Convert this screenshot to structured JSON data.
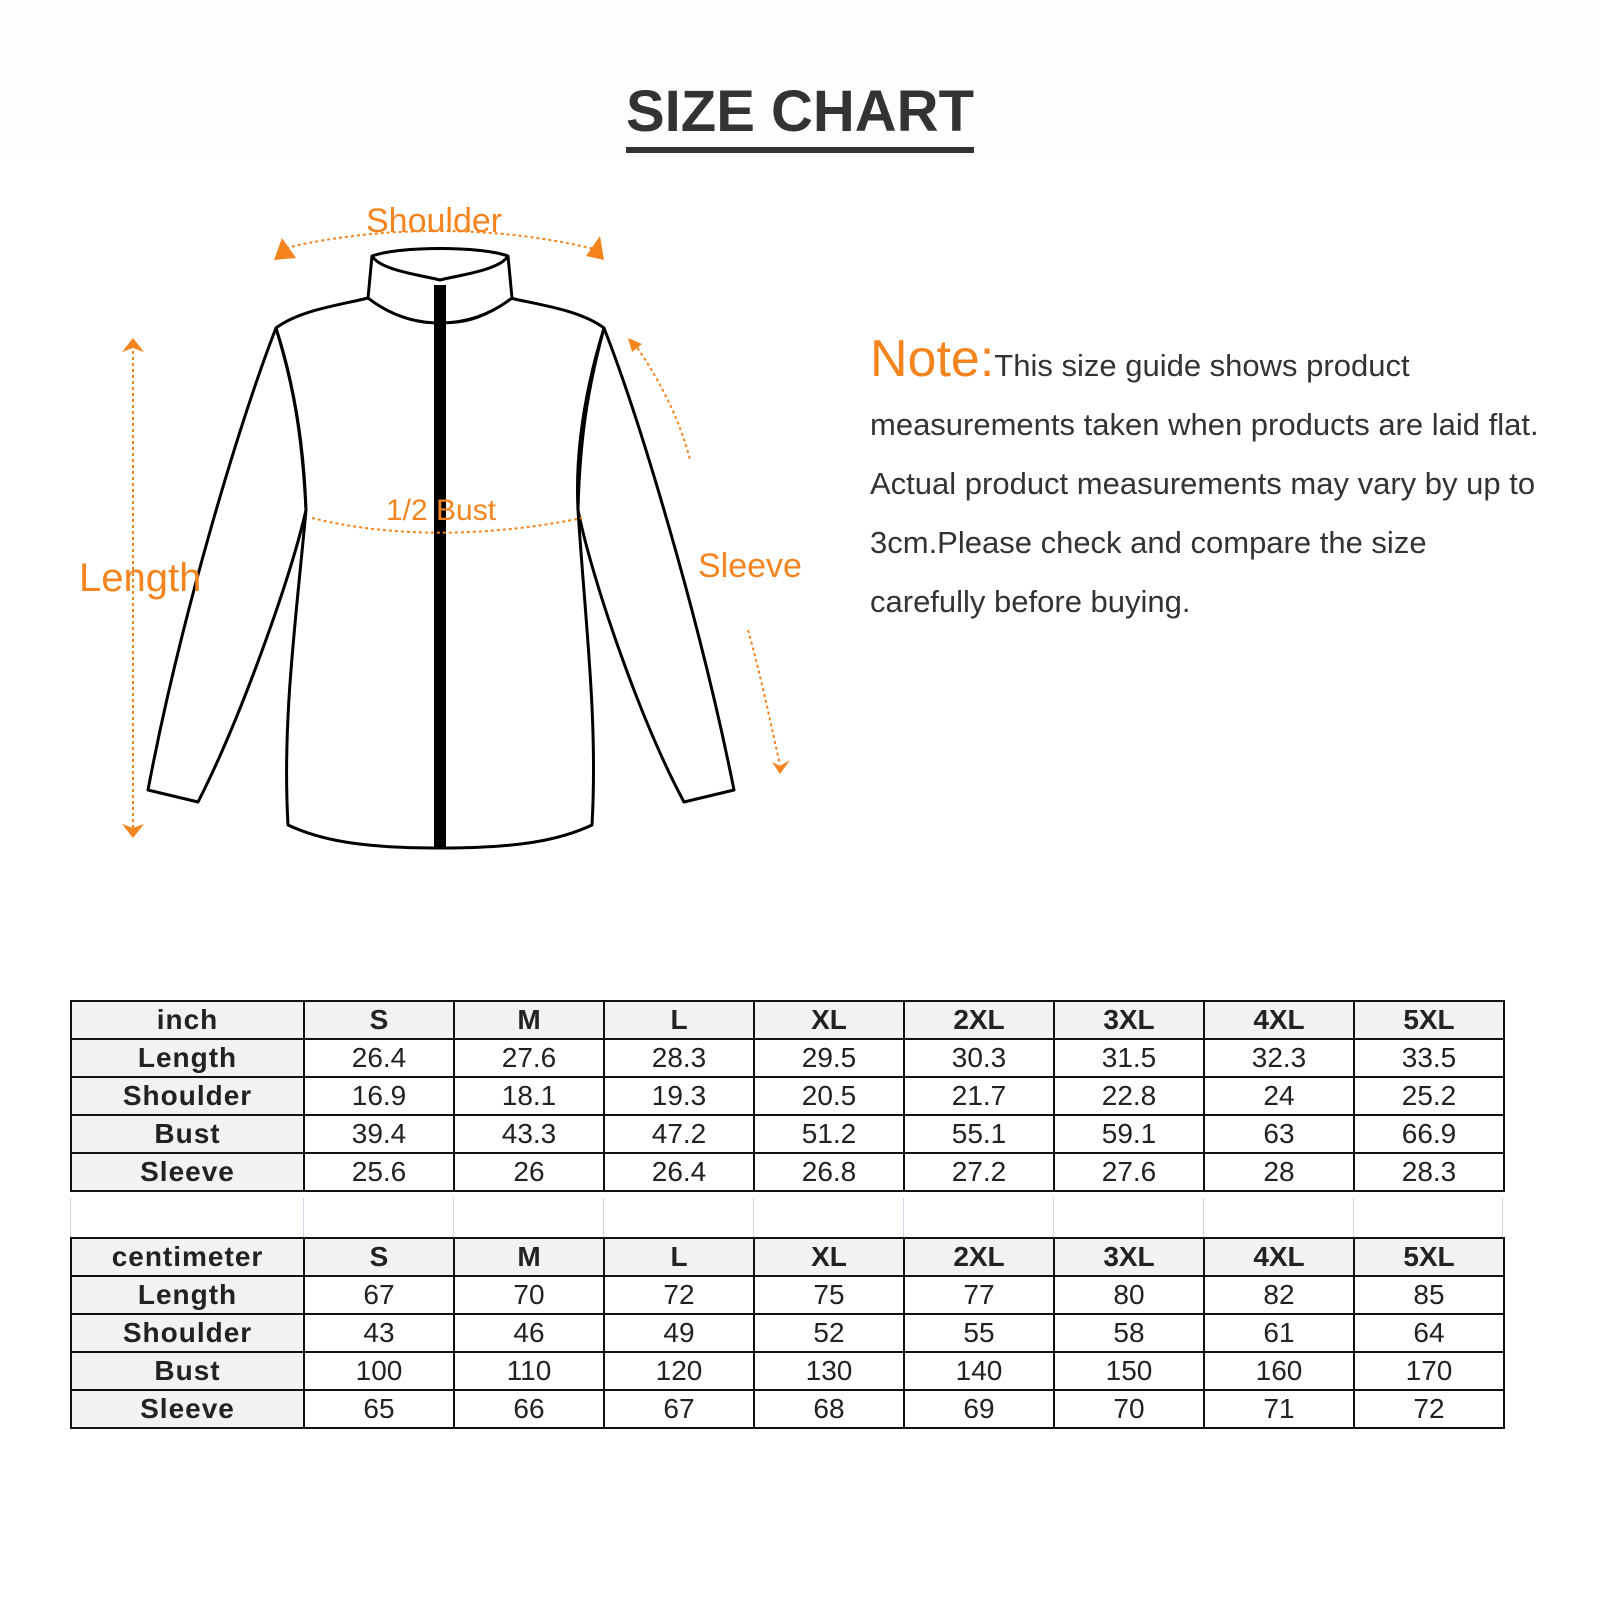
{
  "title": "SIZE CHART",
  "diagram_labels": {
    "shoulder": "Shoulder",
    "length": "Length",
    "bust": "1/2 Bust",
    "sleeve": "Sleeve"
  },
  "note": {
    "heading": "Note:",
    "text": "This size guide shows product measurements taken when products are laid flat. Actual product measurements may vary by up to 3cm.Please check and compare the size carefully before buying."
  },
  "colors": {
    "accent": "#f5841f",
    "text": "#333333",
    "header_cell": "#f2f2f2"
  },
  "tables": [
    {
      "unit": "inch",
      "sizes": [
        "S",
        "M",
        "L",
        "XL",
        "2XL",
        "3XL",
        "4XL",
        "5XL"
      ],
      "rows": [
        {
          "label": "Length",
          "values": [
            "26.4",
            "27.6",
            "28.3",
            "29.5",
            "30.3",
            "31.5",
            "32.3",
            "33.5"
          ]
        },
        {
          "label": "Shoulder",
          "values": [
            "16.9",
            "18.1",
            "19.3",
            "20.5",
            "21.7",
            "22.8",
            "24",
            "25.2"
          ]
        },
        {
          "label": "Bust",
          "values": [
            "39.4",
            "43.3",
            "47.2",
            "51.2",
            "55.1",
            "59.1",
            "63",
            "66.9"
          ]
        },
        {
          "label": "Sleeve",
          "values": [
            "25.6",
            "26",
            "26.4",
            "26.8",
            "27.2",
            "27.6",
            "28",
            "28.3"
          ]
        }
      ]
    },
    {
      "unit": "centimeter",
      "sizes": [
        "S",
        "M",
        "L",
        "XL",
        "2XL",
        "3XL",
        "4XL",
        "5XL"
      ],
      "rows": [
        {
          "label": "Length",
          "values": [
            "67",
            "70",
            "72",
            "75",
            "77",
            "80",
            "82",
            "85"
          ]
        },
        {
          "label": "Shoulder",
          "values": [
            "43",
            "46",
            "49",
            "52",
            "55",
            "58",
            "61",
            "64"
          ]
        },
        {
          "label": "Bust",
          "values": [
            "100",
            "110",
            "120",
            "130",
            "140",
            "150",
            "160",
            "170"
          ]
        },
        {
          "label": "Sleeve",
          "values": [
            "65",
            "66",
            "67",
            "68",
            "69",
            "70",
            "71",
            "72"
          ]
        }
      ]
    }
  ]
}
